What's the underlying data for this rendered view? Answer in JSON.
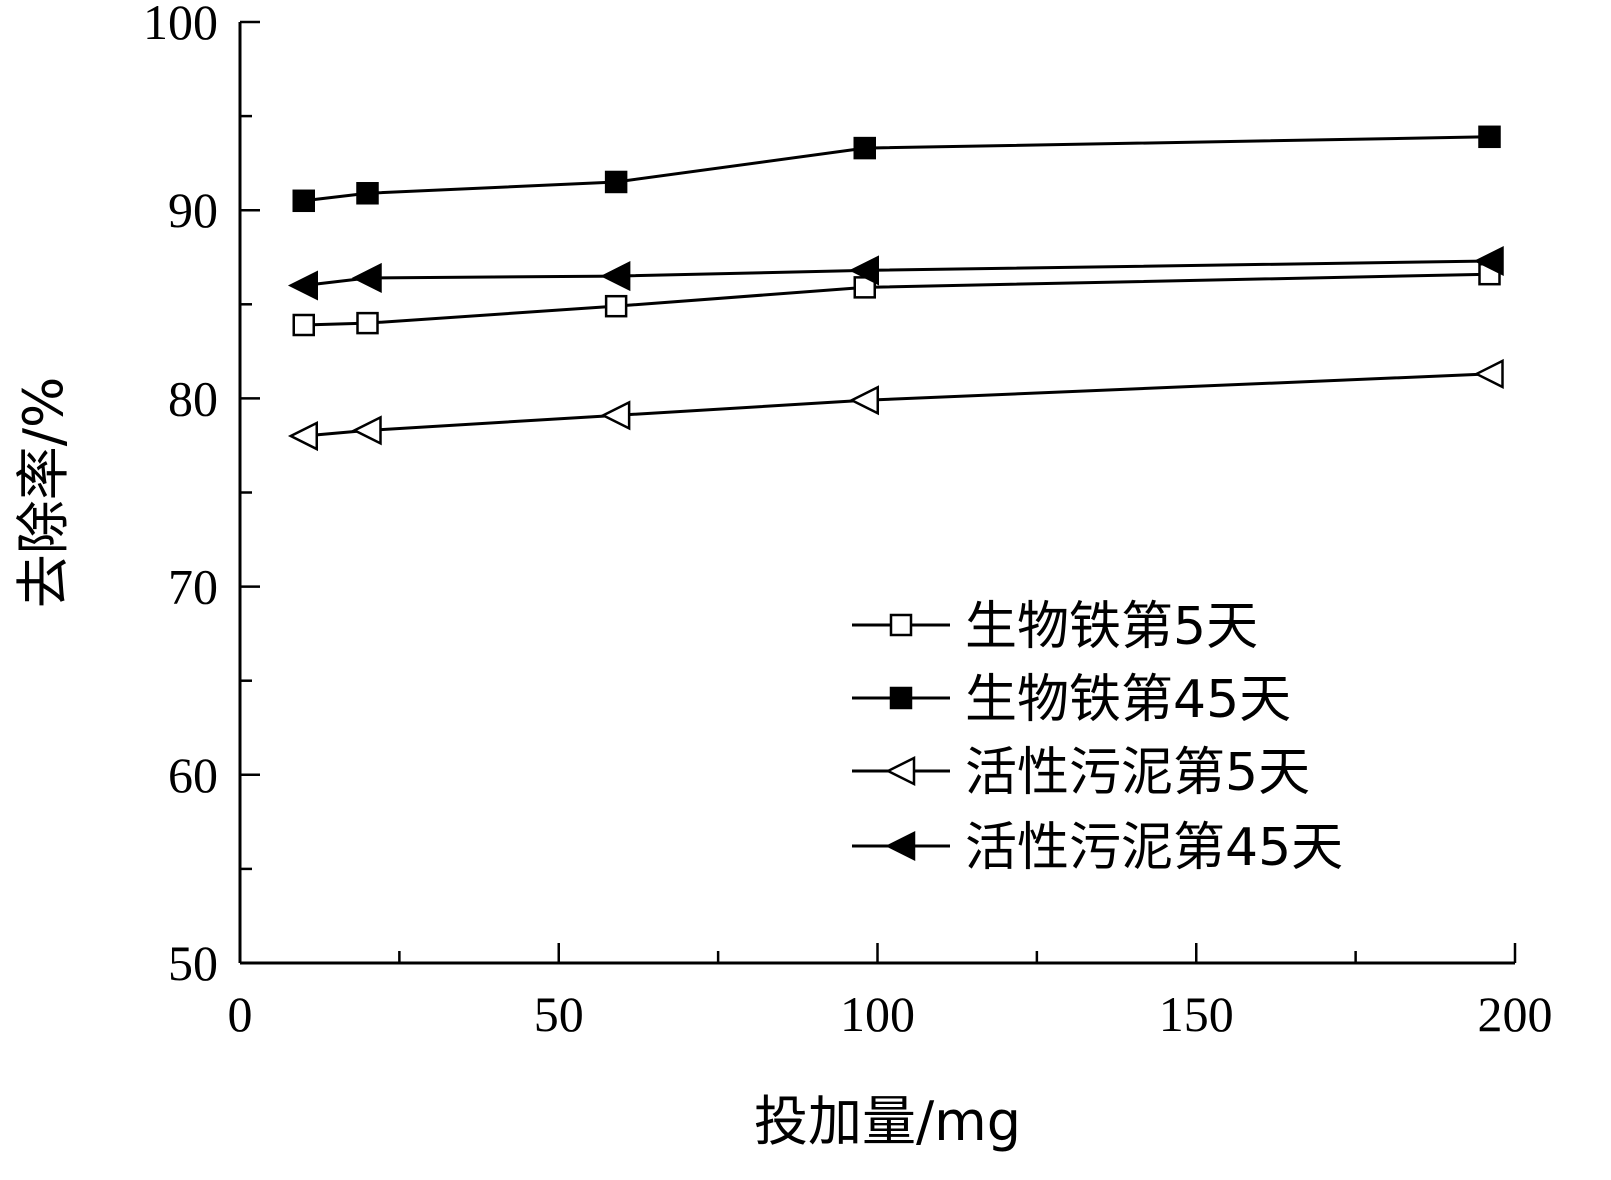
{
  "chart_data": {
    "type": "line",
    "title": "",
    "xlabel": "投加量/mg",
    "ylabel": "去除率/%",
    "xlim": [
      0,
      200
    ],
    "ylim": [
      50,
      100
    ],
    "x_ticks": [
      0,
      50,
      100,
      150,
      200
    ],
    "x_minor_ticks": [
      25,
      75,
      125,
      175
    ],
    "y_ticks": [
      50,
      60,
      70,
      80,
      90,
      100
    ],
    "y_minor_ticks": [
      55,
      65,
      75,
      85,
      95
    ],
    "grid": false,
    "legend_position": "bottom-right",
    "series": [
      {
        "name": "生物铁第5天",
        "marker": "square-open",
        "x": [
          10,
          20,
          59,
          98,
          196
        ],
        "values": [
          83.9,
          84.0,
          84.9,
          85.9,
          86.6
        ]
      },
      {
        "name": "生物铁第45天",
        "marker": "square-filled",
        "x": [
          10,
          20,
          59,
          98,
          196
        ],
        "values": [
          90.5,
          90.9,
          91.5,
          93.3,
          93.9
        ]
      },
      {
        "name": "活性污泥第5天",
        "marker": "triangle-left-open",
        "x": [
          10,
          20,
          59,
          98,
          196
        ],
        "values": [
          78.0,
          78.3,
          79.1,
          79.9,
          81.3
        ]
      },
      {
        "name": "活性污泥第45天",
        "marker": "triangle-left-filled",
        "x": [
          10,
          20,
          59,
          98,
          196
        ],
        "values": [
          86.0,
          86.4,
          86.5,
          86.8,
          87.3
        ]
      }
    ]
  }
}
